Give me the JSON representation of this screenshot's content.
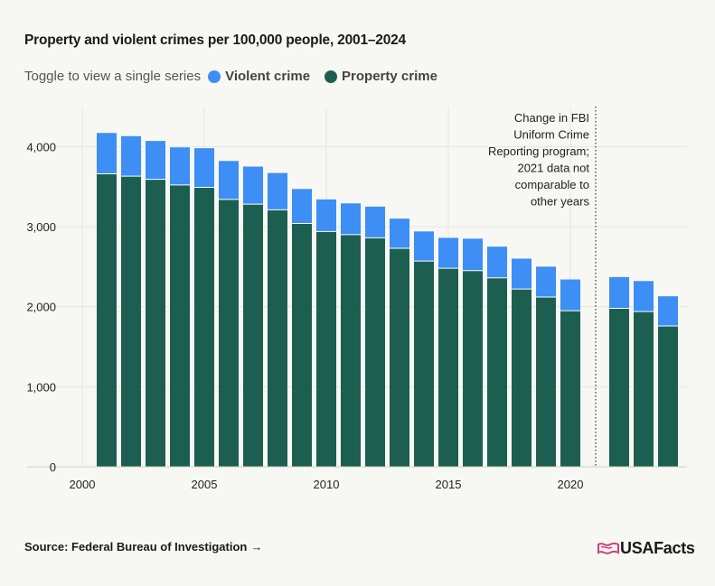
{
  "title": "Property and violent crimes per 100,000 people, 2001–2024",
  "legend": {
    "hint": "Toggle to view a single series",
    "items": [
      {
        "label": "Violent crime",
        "color": "#3d8ef5"
      },
      {
        "label": "Property crime",
        "color": "#1c5f51"
      }
    ]
  },
  "source": {
    "label": "Source: Federal Bureau of Investigation",
    "arrow": "→"
  },
  "logo": {
    "text": "USAFacts"
  },
  "annotation": [
    "Change in FBI",
    "Uniform Crime",
    "Reporting program;",
    "2021 data not",
    "comparable to",
    "other years"
  ],
  "chart_data": {
    "type": "bar",
    "stacked": true,
    "x_ticks": [
      2000,
      2005,
      2010,
      2015,
      2020
    ],
    "y_ticks": [
      0,
      1000,
      2000,
      3000,
      4000
    ],
    "y_tick_labels": [
      "0",
      "1,000",
      "2,000",
      "3,000",
      "4,000"
    ],
    "xlim": [
      2000,
      2024
    ],
    "ylim": [
      0,
      4500
    ],
    "grid": true,
    "categories": [
      2001,
      2002,
      2003,
      2004,
      2005,
      2006,
      2007,
      2008,
      2009,
      2010,
      2011,
      2012,
      2013,
      2014,
      2015,
      2016,
      2017,
      2018,
      2019,
      2020,
      2022,
      2023,
      2024
    ],
    "series": [
      {
        "name": "Property crime",
        "color": "#1c5f51",
        "values": [
          3660,
          3630,
          3590,
          3520,
          3490,
          3340,
          3280,
          3210,
          3040,
          2940,
          2900,
          2860,
          2730,
          2570,
          2480,
          2450,
          2360,
          2220,
          2120,
          1950,
          1980,
          1940,
          1760
        ]
      },
      {
        "name": "Violent crime",
        "color": "#3d8ef5",
        "values": [
          510,
          500,
          480,
          470,
          490,
          480,
          470,
          460,
          430,
          400,
          390,
          390,
          370,
          370,
          380,
          400,
          390,
          380,
          380,
          390,
          390,
          380,
          370
        ]
      }
    ]
  }
}
